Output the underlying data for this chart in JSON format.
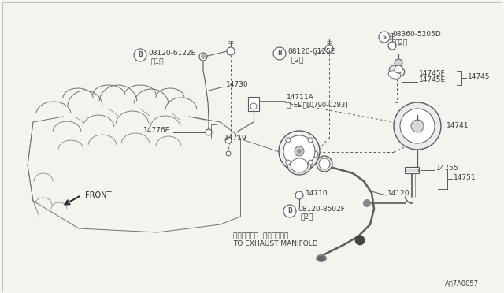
{
  "bg_color": "#f0ede6",
  "line_color": "#5a5a5a",
  "text_color": "#3a3a3a",
  "figsize": [
    6.4,
    3.72
  ],
  "dpi": 100,
  "labels": {
    "b_6122e_part": "08120-6122E",
    "b_6122e_qty": "（1）",
    "14776f": "14776F",
    "14730": "14730",
    "14711a_line1": "14711A",
    "14711a_line2": "（FED）[0790-0293]",
    "b_6125e_part": "08120-6125E",
    "b_6125e_qty": "（2）",
    "s_5205d_part": "08360-5205D",
    "s_5205d_qty": "（2）",
    "14745f": "14745F",
    "14745e": "14745E",
    "14745": "14745",
    "14741": "14741",
    "14719": "14719",
    "14710": "14710",
    "b_8502f_part": "08120-8502F",
    "b_8502f_qty": "（2）",
    "14755": "14755",
    "14751": "14751",
    "14120": "14120",
    "front": "FRONT",
    "exhaust_jp": "エキゾースト  マニホールヘ",
    "exhaust_en": "TO EXHAUST MANIFOLD",
    "diagram_id": "A・7A0057"
  }
}
